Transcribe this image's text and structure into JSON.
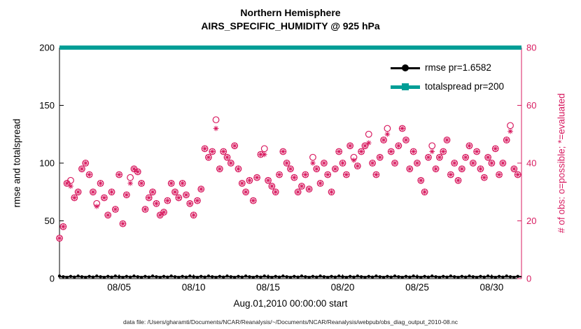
{
  "title": {
    "line1": "Northern Hemisphere",
    "line2": "AIRS_SPECIFIC_HUMIDITY @ 925 hPa"
  },
  "xlabel": "Aug.01,2010 00:00:00 start",
  "footer": "data file: /Users/gharamti/Documents/NCAR/Reanalysis/~/Documents/NCAR/Reanalysis/webpub/obs_diag_output_2010-08.nc",
  "colors": {
    "rmse": "#000000",
    "totalspread": "#009e96",
    "obs": "#d81b60",
    "axis": "#000000"
  },
  "left_axis": {
    "label": "rmse and totalspread",
    "ticks": [
      0,
      50,
      100,
      150,
      200
    ],
    "range": [
      0,
      200
    ]
  },
  "right_axis": {
    "label": "# of obs: o=possible; *=evaluated",
    "ticks": [
      0,
      20,
      40,
      60,
      80
    ],
    "range": [
      0,
      80
    ],
    "color": "#d81b60"
  },
  "x_axis": {
    "tick_labels": [
      "08/05",
      "08/10",
      "08/15",
      "08/20",
      "08/25",
      "08/30"
    ],
    "tick_days": [
      5,
      10,
      15,
      20,
      25,
      30
    ],
    "range_days": [
      1,
      32
    ]
  },
  "legend": {
    "items": [
      {
        "label": "rmse pr=1.6582",
        "color": "#000000",
        "marker": "circle"
      },
      {
        "label": "totalspread pr=200",
        "color": "#009e96",
        "marker": "square"
      }
    ]
  },
  "chart_data": {
    "type": "line+scatter",
    "title": "Northern Hemisphere — AIRS_SPECIFIC_HUMIDITY @ 925 hPa",
    "xlabel": "Aug.01,2010 00:00:00 start",
    "x_start_day": 1,
    "x_step_days": 0.25,
    "series": [
      {
        "name": "rmse",
        "axis": "left",
        "style": "line",
        "marker": "dot",
        "color": "#000000",
        "constant_value": 1.6582
      },
      {
        "name": "totalspread",
        "axis": "left",
        "style": "line",
        "marker": "square",
        "color": "#009e96",
        "constant_value": 200
      },
      {
        "name": "possible",
        "axis": "right",
        "style": "scatter",
        "marker": "o",
        "color": "#d81b60",
        "values": [
          14,
          18,
          33,
          34,
          28,
          30,
          38,
          40,
          36,
          30,
          26,
          33,
          28,
          22,
          30,
          24,
          36,
          19,
          29,
          35,
          38,
          37,
          33,
          24,
          28,
          30,
          26,
          22,
          23,
          27,
          33,
          30,
          28,
          33,
          29,
          26,
          22,
          27,
          31,
          45,
          42,
          44,
          55,
          38,
          44,
          42,
          40,
          46,
          38,
          33,
          30,
          34,
          27,
          35,
          43,
          45,
          34,
          32,
          30,
          36,
          44,
          40,
          38,
          35,
          30,
          32,
          36,
          31,
          42,
          38,
          33,
          40,
          36,
          30,
          38,
          44,
          40,
          36,
          46,
          42,
          39,
          44,
          46,
          50,
          40,
          36,
          42,
          48,
          52,
          44,
          40,
          46,
          52,
          48,
          38,
          44,
          40,
          34,
          30,
          42,
          46,
          38,
          42,
          44,
          48,
          36,
          40,
          34,
          38,
          42,
          46,
          40,
          44,
          38,
          35,
          42,
          40,
          45,
          36,
          40,
          48,
          53,
          38,
          36
        ]
      },
      {
        "name": "evaluated",
        "axis": "right",
        "style": "scatter",
        "marker": "*",
        "color": "#d81b60",
        "values": [
          14,
          18,
          33,
          32,
          28,
          30,
          38,
          40,
          36,
          30,
          25,
          33,
          28,
          22,
          30,
          24,
          36,
          19,
          29,
          33,
          38,
          37,
          33,
          24,
          28,
          30,
          26,
          22,
          23,
          27,
          33,
          30,
          28,
          33,
          29,
          26,
          22,
          27,
          31,
          45,
          42,
          44,
          52,
          38,
          44,
          42,
          40,
          46,
          38,
          33,
          30,
          34,
          27,
          35,
          43,
          43,
          34,
          32,
          30,
          36,
          44,
          40,
          38,
          35,
          30,
          32,
          36,
          31,
          40,
          38,
          33,
          40,
          36,
          30,
          38,
          44,
          40,
          36,
          46,
          41,
          39,
          44,
          46,
          47,
          40,
          36,
          42,
          48,
          50,
          44,
          40,
          46,
          52,
          48,
          38,
          44,
          40,
          34,
          30,
          42,
          44,
          38,
          42,
          44,
          48,
          36,
          40,
          34,
          38,
          42,
          46,
          40,
          44,
          38,
          35,
          42,
          40,
          45,
          36,
          40,
          48,
          51,
          38,
          36
        ]
      }
    ]
  }
}
